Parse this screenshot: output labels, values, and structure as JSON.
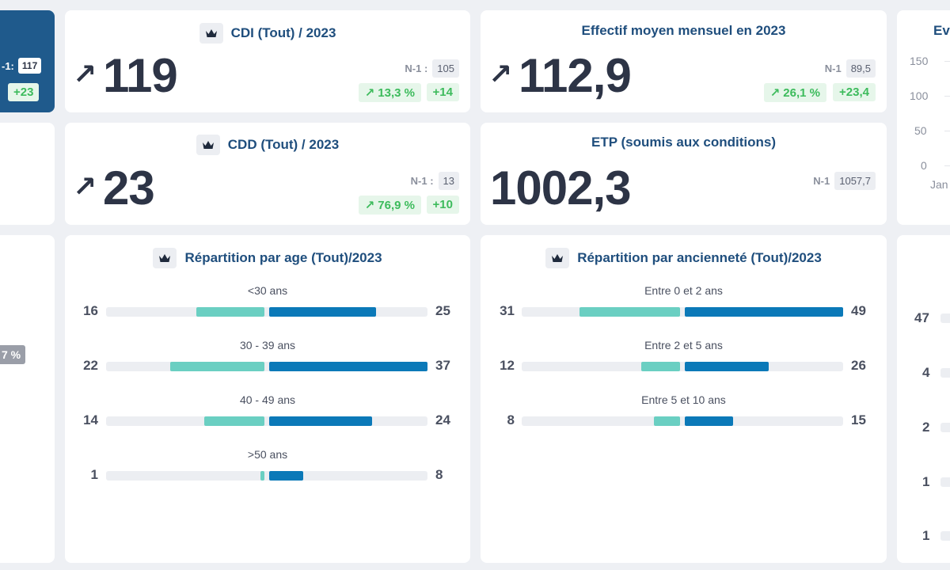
{
  "left_panel": {
    "n1_label": "-1:",
    "n1_value": "117",
    "diff": "+23",
    "pct_badge": "7 %"
  },
  "cdi": {
    "title": "CDI (Tout) / 2023",
    "value": "119",
    "n1_label": "N-1 :",
    "n1_value": "105",
    "pct": "↗ 13,3 %",
    "diff": "+14"
  },
  "cdd": {
    "title": "CDD (Tout) / 2023",
    "value": "23",
    "n1_label": "N-1 :",
    "n1_value": "13",
    "pct": "↗ 76,9 %",
    "diff": "+10"
  },
  "effectif": {
    "title": "Effectif moyen mensuel en 2023",
    "value": "112,9",
    "n1_label": "N-1",
    "n1_value": "89,5",
    "pct": "↗ 26,1 %",
    "diff": "+23,4"
  },
  "etp": {
    "title": "ETP (soumis aux conditions)",
    "value": "1002,3",
    "n1_label": "N-1",
    "n1_value": "1057,7"
  },
  "arrow_up": "↗",
  "evolution": {
    "title": "Ev",
    "yticks": [
      "150",
      "100",
      "50",
      "0"
    ],
    "xlabel": "Jan"
  },
  "age": {
    "title": "Répartition par age (Tout)/2023",
    "rows": [
      {
        "label": "<30 ans",
        "left": "16",
        "right": "25",
        "lv": 16,
        "rv": 25
      },
      {
        "label": "30 - 39 ans",
        "left": "22",
        "right": "37",
        "lv": 22,
        "rv": 37
      },
      {
        "label": "40 - 49 ans",
        "left": "14",
        "right": "24",
        "lv": 14,
        "rv": 24
      },
      {
        "label": ">50 ans",
        "left": "1",
        "right": "8",
        "lv": 1,
        "rv": 8
      }
    ],
    "max": 37
  },
  "anciennete": {
    "title": "Répartition par ancienneté (Tout)/2023",
    "rows": [
      {
        "label": "Entre 0 et 2 ans",
        "left": "31",
        "right": "49",
        "lv": 31,
        "rv": 49
      },
      {
        "label": "Entre 2 et 5 ans",
        "left": "12",
        "right": "26",
        "lv": 12,
        "rv": 26
      },
      {
        "label": "Entre 5 et 10 ans",
        "left": "8",
        "right": "15",
        "lv": 8,
        "rv": 15
      }
    ],
    "max": 49
  },
  "right_panel": {
    "values": [
      "47",
      "4",
      "2",
      "1",
      "1"
    ]
  }
}
